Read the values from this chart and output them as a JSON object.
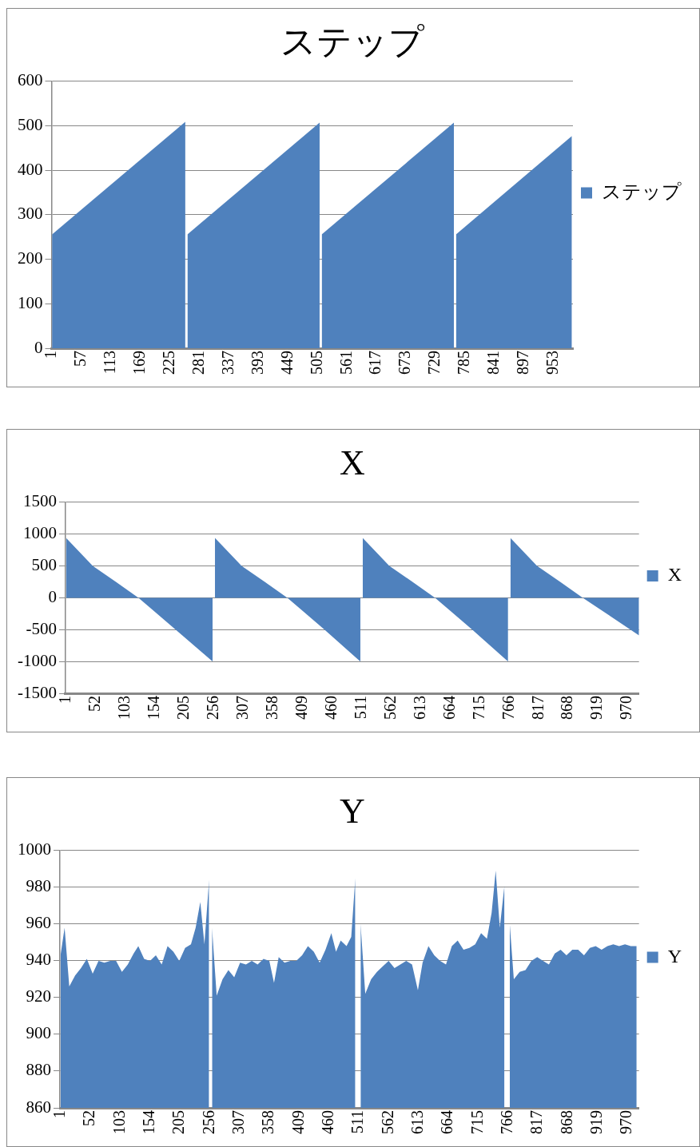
{
  "chart_data": [
    {
      "type": "area",
      "title": "ステップ",
      "x": [
        1,
        254,
        256,
        258,
        509,
        511,
        513,
        764,
        766,
        768,
        988
      ],
      "series": [
        {
          "name": "ステップ",
          "color": "#4f81bd",
          "values": [
            256,
            509,
            null,
            256,
            507,
            null,
            256,
            507,
            null,
            256,
            477
          ]
        }
      ],
      "xlim": [
        0,
        990
      ],
      "xticks": [
        1,
        57,
        113,
        169,
        225,
        281,
        337,
        393,
        449,
        505,
        561,
        617,
        673,
        729,
        785,
        841,
        897,
        953
      ],
      "ylim": [
        0,
        600
      ],
      "yticks": [
        0,
        100,
        200,
        300,
        400,
        500,
        600
      ],
      "grid": "y",
      "legend": "right"
    },
    {
      "type": "area",
      "title": "X",
      "x": [
        1,
        47,
        87,
        126,
        190,
        254,
        256,
        258,
        304,
        344,
        383,
        447,
        509,
        511,
        513,
        559,
        599,
        638,
        702,
        764,
        766,
        768,
        814,
        854,
        893,
        990
      ],
      "series": [
        {
          "name": "X",
          "color": "#4f81bd",
          "values": [
            940,
            500,
            250,
            0,
            -500,
            -1000,
            null,
            940,
            500,
            250,
            0,
            -500,
            -1000,
            null,
            940,
            500,
            250,
            0,
            -500,
            -1000,
            null,
            940,
            500,
            250,
            0,
            -590
          ]
        }
      ],
      "xlim": [
        0,
        990
      ],
      "xticks": [
        1,
        52,
        103,
        154,
        205,
        256,
        307,
        358,
        409,
        460,
        511,
        562,
        613,
        664,
        715,
        766,
        817,
        868,
        919,
        970
      ],
      "ylim": [
        -1500,
        1500
      ],
      "yticks": [
        -1500,
        -1000,
        -500,
        0,
        500,
        1000,
        1500
      ],
      "grid": "y",
      "legend": "right"
    },
    {
      "type": "area",
      "title": "Y",
      "x": [
        1,
        8,
        16,
        26,
        36,
        46,
        56,
        66,
        76,
        86,
        96,
        106,
        116,
        126,
        134,
        144,
        154,
        164,
        174,
        184,
        194,
        204,
        214,
        224,
        232,
        240,
        247,
        255,
        257,
        260,
        268,
        278,
        288,
        298,
        308,
        318,
        328,
        338,
        348,
        358,
        366,
        374,
        384,
        394,
        404,
        414,
        424,
        434,
        444,
        454,
        464,
        472,
        480,
        490,
        498,
        505,
        511,
        514,
        522,
        532,
        542,
        552,
        562,
        572,
        582,
        592,
        602,
        612,
        620,
        630,
        640,
        650,
        660,
        670,
        680,
        690,
        700,
        710,
        720,
        730,
        738,
        745,
        752,
        760,
        766,
        769,
        776,
        786,
        796,
        806,
        816,
        826,
        836,
        846,
        856,
        866,
        876,
        886,
        896,
        906,
        916,
        926,
        936,
        946,
        956,
        966,
        976,
        986
      ],
      "series": [
        {
          "name": "Y",
          "color": "#4f81bd",
          "values": [
            943,
            958,
            926,
            932,
            936,
            941,
            933,
            940,
            939,
            940,
            940,
            934,
            938,
            944,
            948,
            941,
            940,
            943,
            938,
            948,
            945,
            940,
            947,
            949,
            958,
            972,
            949,
            984,
            null,
            958,
            921,
            930,
            935,
            931,
            939,
            938,
            940,
            938,
            941,
            940,
            928,
            942,
            939,
            940,
            940,
            943,
            948,
            945,
            939,
            946,
            955,
            945,
            951,
            948,
            953,
            985,
            null,
            960,
            922,
            930,
            934,
            937,
            940,
            936,
            938,
            940,
            938,
            924,
            939,
            948,
            943,
            940,
            938,
            948,
            951,
            946,
            947,
            949,
            955,
            952,
            966,
            989,
            958,
            981,
            null,
            960,
            930,
            934,
            935,
            940,
            942,
            940,
            938,
            944,
            946,
            943,
            946,
            946,
            943,
            947,
            948,
            946,
            948,
            949,
            948,
            949,
            948,
            948
          ]
        }
      ],
      "xlim": [
        0,
        990
      ],
      "xticks": [
        1,
        52,
        103,
        154,
        205,
        256,
        307,
        358,
        409,
        460,
        511,
        562,
        613,
        664,
        715,
        766,
        817,
        868,
        919,
        970
      ],
      "ylim": [
        860,
        1000
      ],
      "yticks": [
        860,
        880,
        900,
        920,
        940,
        960,
        980,
        1000
      ],
      "grid": "y",
      "legend": "right"
    }
  ]
}
